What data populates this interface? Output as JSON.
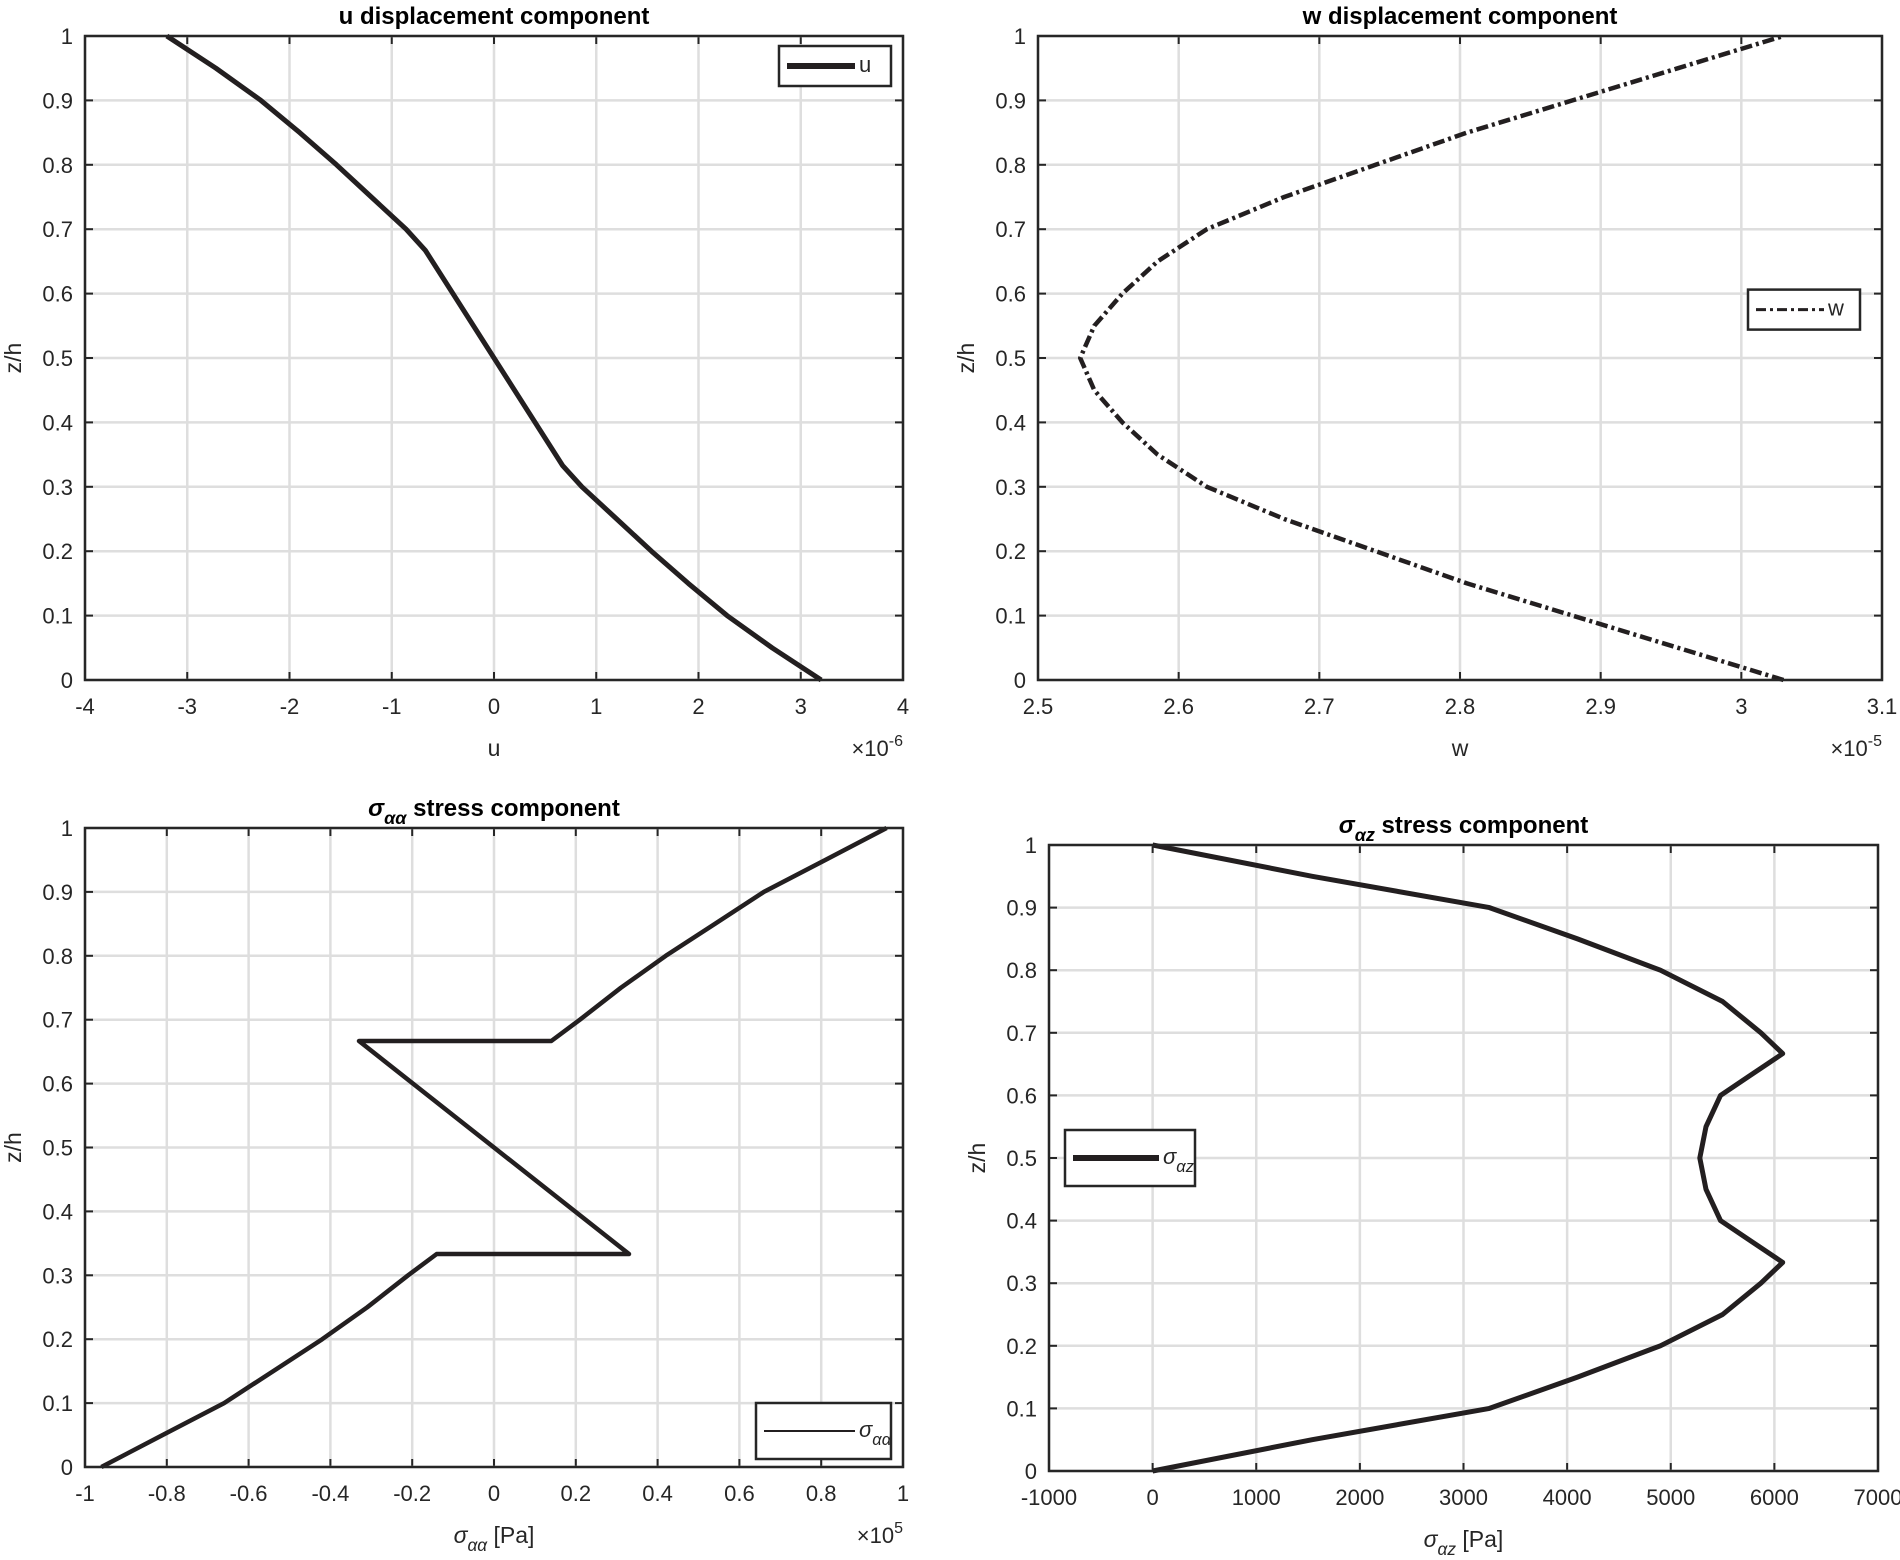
{
  "chart_data": [
    {
      "type": "line",
      "title_parts": [
        {
          "text": "u displacement component",
          "sub": false
        }
      ],
      "xlabel_parts": [
        {
          "text": "u",
          "sub": false
        }
      ],
      "ylabel": "z/h",
      "x_multiplier": {
        "base": "×10",
        "exp": "-6"
      },
      "xlim": [
        -4,
        4
      ],
      "ylim": [
        0,
        1
      ],
      "xticks": [
        "-4",
        "-3",
        "-2",
        "-1",
        "0",
        "1",
        "2",
        "3",
        "4"
      ],
      "yticks": [
        "0",
        "0.1",
        "0.2",
        "0.3",
        "0.4",
        "0.5",
        "0.6",
        "0.7",
        "0.8",
        "0.9",
        "1"
      ],
      "grid": true,
      "legend": {
        "placement": "top-right",
        "style": "solid-thick",
        "label_parts": [
          {
            "text": "u",
            "sub": false
          }
        ]
      },
      "series": [
        {
          "name": "u",
          "style": "solid",
          "x": [
            3.2,
            2.72,
            2.28,
            1.9,
            1.54,
            1.2,
            0.86,
            0.67,
            0,
            -0.67,
            -0.86,
            -1.2,
            -1.54,
            -1.9,
            -2.28,
            -2.72,
            -3.2
          ],
          "y": [
            0,
            0.05,
            0.1,
            0.15,
            0.2,
            0.25,
            0.3,
            0.3333,
            0.5,
            0.6667,
            0.7,
            0.75,
            0.8,
            0.85,
            0.9,
            0.95,
            1
          ]
        }
      ]
    },
    {
      "type": "line",
      "title_parts": [
        {
          "text": "w displacement component",
          "sub": false
        }
      ],
      "xlabel_parts": [
        {
          "text": "w",
          "sub": false
        }
      ],
      "ylabel": "z/h",
      "x_multiplier": {
        "base": "×10",
        "exp": "-5"
      },
      "xlim": [
        2.5,
        3.1
      ],
      "ylim": [
        0,
        1
      ],
      "xticks": [
        "2.5",
        "2.6",
        "2.7",
        "2.8",
        "2.9",
        "3",
        "3.1"
      ],
      "yticks": [
        "0",
        "0.1",
        "0.2",
        "0.3",
        "0.4",
        "0.5",
        "0.6",
        "0.7",
        "0.8",
        "0.9",
        "1"
      ],
      "grid": true,
      "legend": {
        "placement": "right",
        "style": "dash-dot",
        "label_parts": [
          {
            "text": "w",
            "sub": false
          }
        ]
      },
      "series": [
        {
          "name": "w",
          "style": "dash-dot",
          "x": [
            3.03,
            2.955,
            2.88,
            2.805,
            2.74,
            2.675,
            2.62,
            2.585,
            2.56,
            2.54,
            2.53,
            2.54,
            2.56,
            2.585,
            2.62,
            2.675,
            2.74,
            2.805,
            2.88,
            2.955,
            3.03
          ],
          "y": [
            0,
            0.05,
            0.1,
            0.15,
            0.2,
            0.25,
            0.3,
            0.35,
            0.4,
            0.45,
            0.5,
            0.55,
            0.6,
            0.65,
            0.7,
            0.75,
            0.8,
            0.85,
            0.9,
            0.95,
            1
          ]
        }
      ]
    },
    {
      "type": "line",
      "title_parts": [
        {
          "text": "σ",
          "sub": false
        },
        {
          "text": "αα",
          "sub": true
        },
        {
          "text": " stress component",
          "sub": false
        }
      ],
      "xlabel_parts": [
        {
          "text": "σ",
          "sub": false
        },
        {
          "text": "αα",
          "sub": true
        },
        {
          "text": " [Pa]",
          "sub": false
        }
      ],
      "ylabel": "z/h",
      "x_multiplier": {
        "base": "×10",
        "exp": "5"
      },
      "xlim": [
        -1,
        1
      ],
      "ylim": [
        0,
        1
      ],
      "xticks": [
        "-1",
        "-0.8",
        "-0.6",
        "-0.4",
        "-0.2",
        "0",
        "0.2",
        "0.4",
        "0.6",
        "0.8",
        "1"
      ],
      "yticks": [
        "0",
        "0.1",
        "0.2",
        "0.3",
        "0.4",
        "0.5",
        "0.6",
        "0.7",
        "0.8",
        "0.9",
        "1"
      ],
      "grid": true,
      "legend": {
        "placement": "bottom-right",
        "style": "solid-thin",
        "label_parts": [
          {
            "text": "σ",
            "sub": false
          },
          {
            "text": "αα",
            "sub": true
          }
        ]
      },
      "series": [
        {
          "name": "σαα",
          "style": "solid",
          "x": [
            -0.96,
            -0.81,
            -0.66,
            -0.54,
            -0.42,
            -0.31,
            -0.21,
            -0.14,
            0.33,
            -0.33,
            0.14,
            0.21,
            0.31,
            0.42,
            0.54,
            0.66,
            0.81,
            0.96
          ],
          "y": [
            0,
            0.05,
            0.1,
            0.15,
            0.2,
            0.25,
            0.3,
            0.3333,
            0.3333,
            0.6667,
            0.6667,
            0.7,
            0.75,
            0.8,
            0.85,
            0.9,
            0.95,
            1
          ]
        }
      ]
    },
    {
      "type": "line",
      "title_parts": [
        {
          "text": "σ",
          "sub": false
        },
        {
          "text": "αz",
          "sub": true
        },
        {
          "text": " stress component",
          "sub": false
        }
      ],
      "xlabel_parts": [
        {
          "text": "σ",
          "sub": false
        },
        {
          "text": "αz",
          "sub": true
        },
        {
          "text": " [Pa]",
          "sub": false
        }
      ],
      "ylabel": "z/h",
      "xlim": [
        -1000,
        7000
      ],
      "ylim": [
        0,
        1
      ],
      "xticks": [
        "-1000",
        "0",
        "1000",
        "2000",
        "3000",
        "4000",
        "5000",
        "6000",
        "7000"
      ],
      "yticks": [
        "0",
        "0.1",
        "0.2",
        "0.3",
        "0.4",
        "0.5",
        "0.6",
        "0.7",
        "0.8",
        "0.9",
        "1"
      ],
      "grid": true,
      "legend": {
        "placement": "left",
        "style": "solid-thick",
        "label_parts": [
          {
            "text": "σ",
            "sub": false
          },
          {
            "text": "αz",
            "sub": true
          }
        ]
      },
      "series": [
        {
          "name": "σαz",
          "style": "solid",
          "x": [
            0,
            1540,
            3250,
            4100,
            4900,
            5500,
            5870,
            6080,
            5750,
            5480,
            5340,
            5280,
            5340,
            5480,
            5750,
            6080,
            5870,
            5500,
            4900,
            4100,
            3250,
            1540,
            0
          ],
          "y": [
            0,
            0.05,
            0.1,
            0.15,
            0.2,
            0.25,
            0.3,
            0.3333,
            0.37,
            0.4,
            0.45,
            0.5,
            0.55,
            0.6,
            0.63,
            0.6667,
            0.7,
            0.75,
            0.8,
            0.85,
            0.9,
            0.95,
            1
          ]
        }
      ]
    }
  ],
  "colors": {
    "line": "#231f20",
    "grid": "#dedede",
    "axes": "#262626"
  }
}
